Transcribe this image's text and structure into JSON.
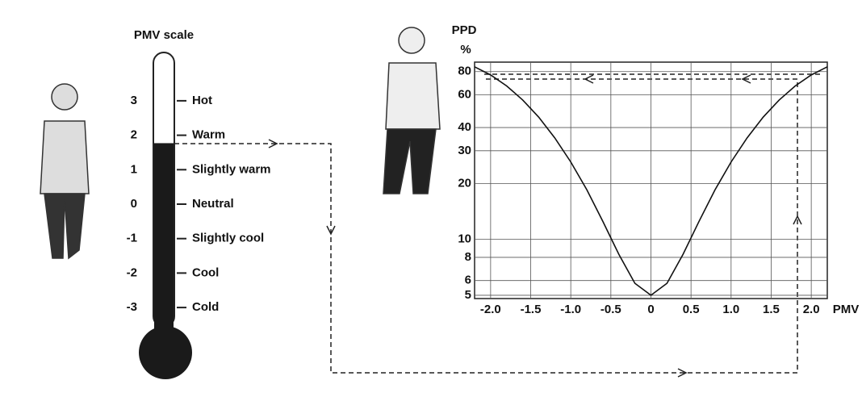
{
  "pmv_scale": {
    "title": "PMV scale",
    "level": 1.77,
    "ticks": [
      {
        "value": 3,
        "label": "Hot"
      },
      {
        "value": 2,
        "label": "Warm"
      },
      {
        "value": 1,
        "label": "Slightly warm"
      },
      {
        "value": 0,
        "label": "Neutral"
      },
      {
        "value": -1,
        "label": "Slightly cool"
      },
      {
        "value": -2,
        "label": "Cool"
      },
      {
        "value": -3,
        "label": "Cold"
      }
    ]
  },
  "chart_data": {
    "type": "line",
    "ylabel": "PPD",
    "yunit": "%",
    "xlabel": "PMV",
    "x": [
      -2.2,
      -2.0,
      -1.8,
      -1.6,
      -1.4,
      -1.2,
      -1.0,
      -0.8,
      -0.6,
      -0.4,
      -0.2,
      0,
      0.2,
      0.4,
      0.6,
      0.8,
      1.0,
      1.2,
      1.4,
      1.6,
      1.8,
      2.0,
      2.2
    ],
    "series": [
      {
        "color": "#111111",
        "values": [
          84.9,
          76.8,
          67.0,
          56.3,
          45.5,
          35.2,
          26.1,
          18.5,
          12.5,
          8.3,
          5.8,
          5,
          5.8,
          8.3,
          12.5,
          18.5,
          26.1,
          35.2,
          45.5,
          56.3,
          67.0,
          76.8,
          84.9
        ]
      }
    ],
    "xlim": [
      -2.2,
      2.2
    ],
    "ylim": [
      4.8,
      90
    ],
    "log_y": true,
    "grid": true,
    "xticks": [
      {
        "value": -2.0,
        "label": "-2.0"
      },
      {
        "value": -1.5,
        "label": "-1.5"
      },
      {
        "value": -1.0,
        "label": "-1.0"
      },
      {
        "value": -0.5,
        "label": "-0.5"
      },
      0,
      {
        "value": 0.5,
        "label": "0.5"
      },
      {
        "value": 1.0,
        "label": "1.0"
      },
      {
        "value": 1.5,
        "label": "1.5"
      },
      {
        "value": 2.0,
        "label": "2.0"
      }
    ],
    "yticks": [
      5,
      6,
      8,
      10,
      20,
      30,
      40,
      60,
      80
    ]
  }
}
